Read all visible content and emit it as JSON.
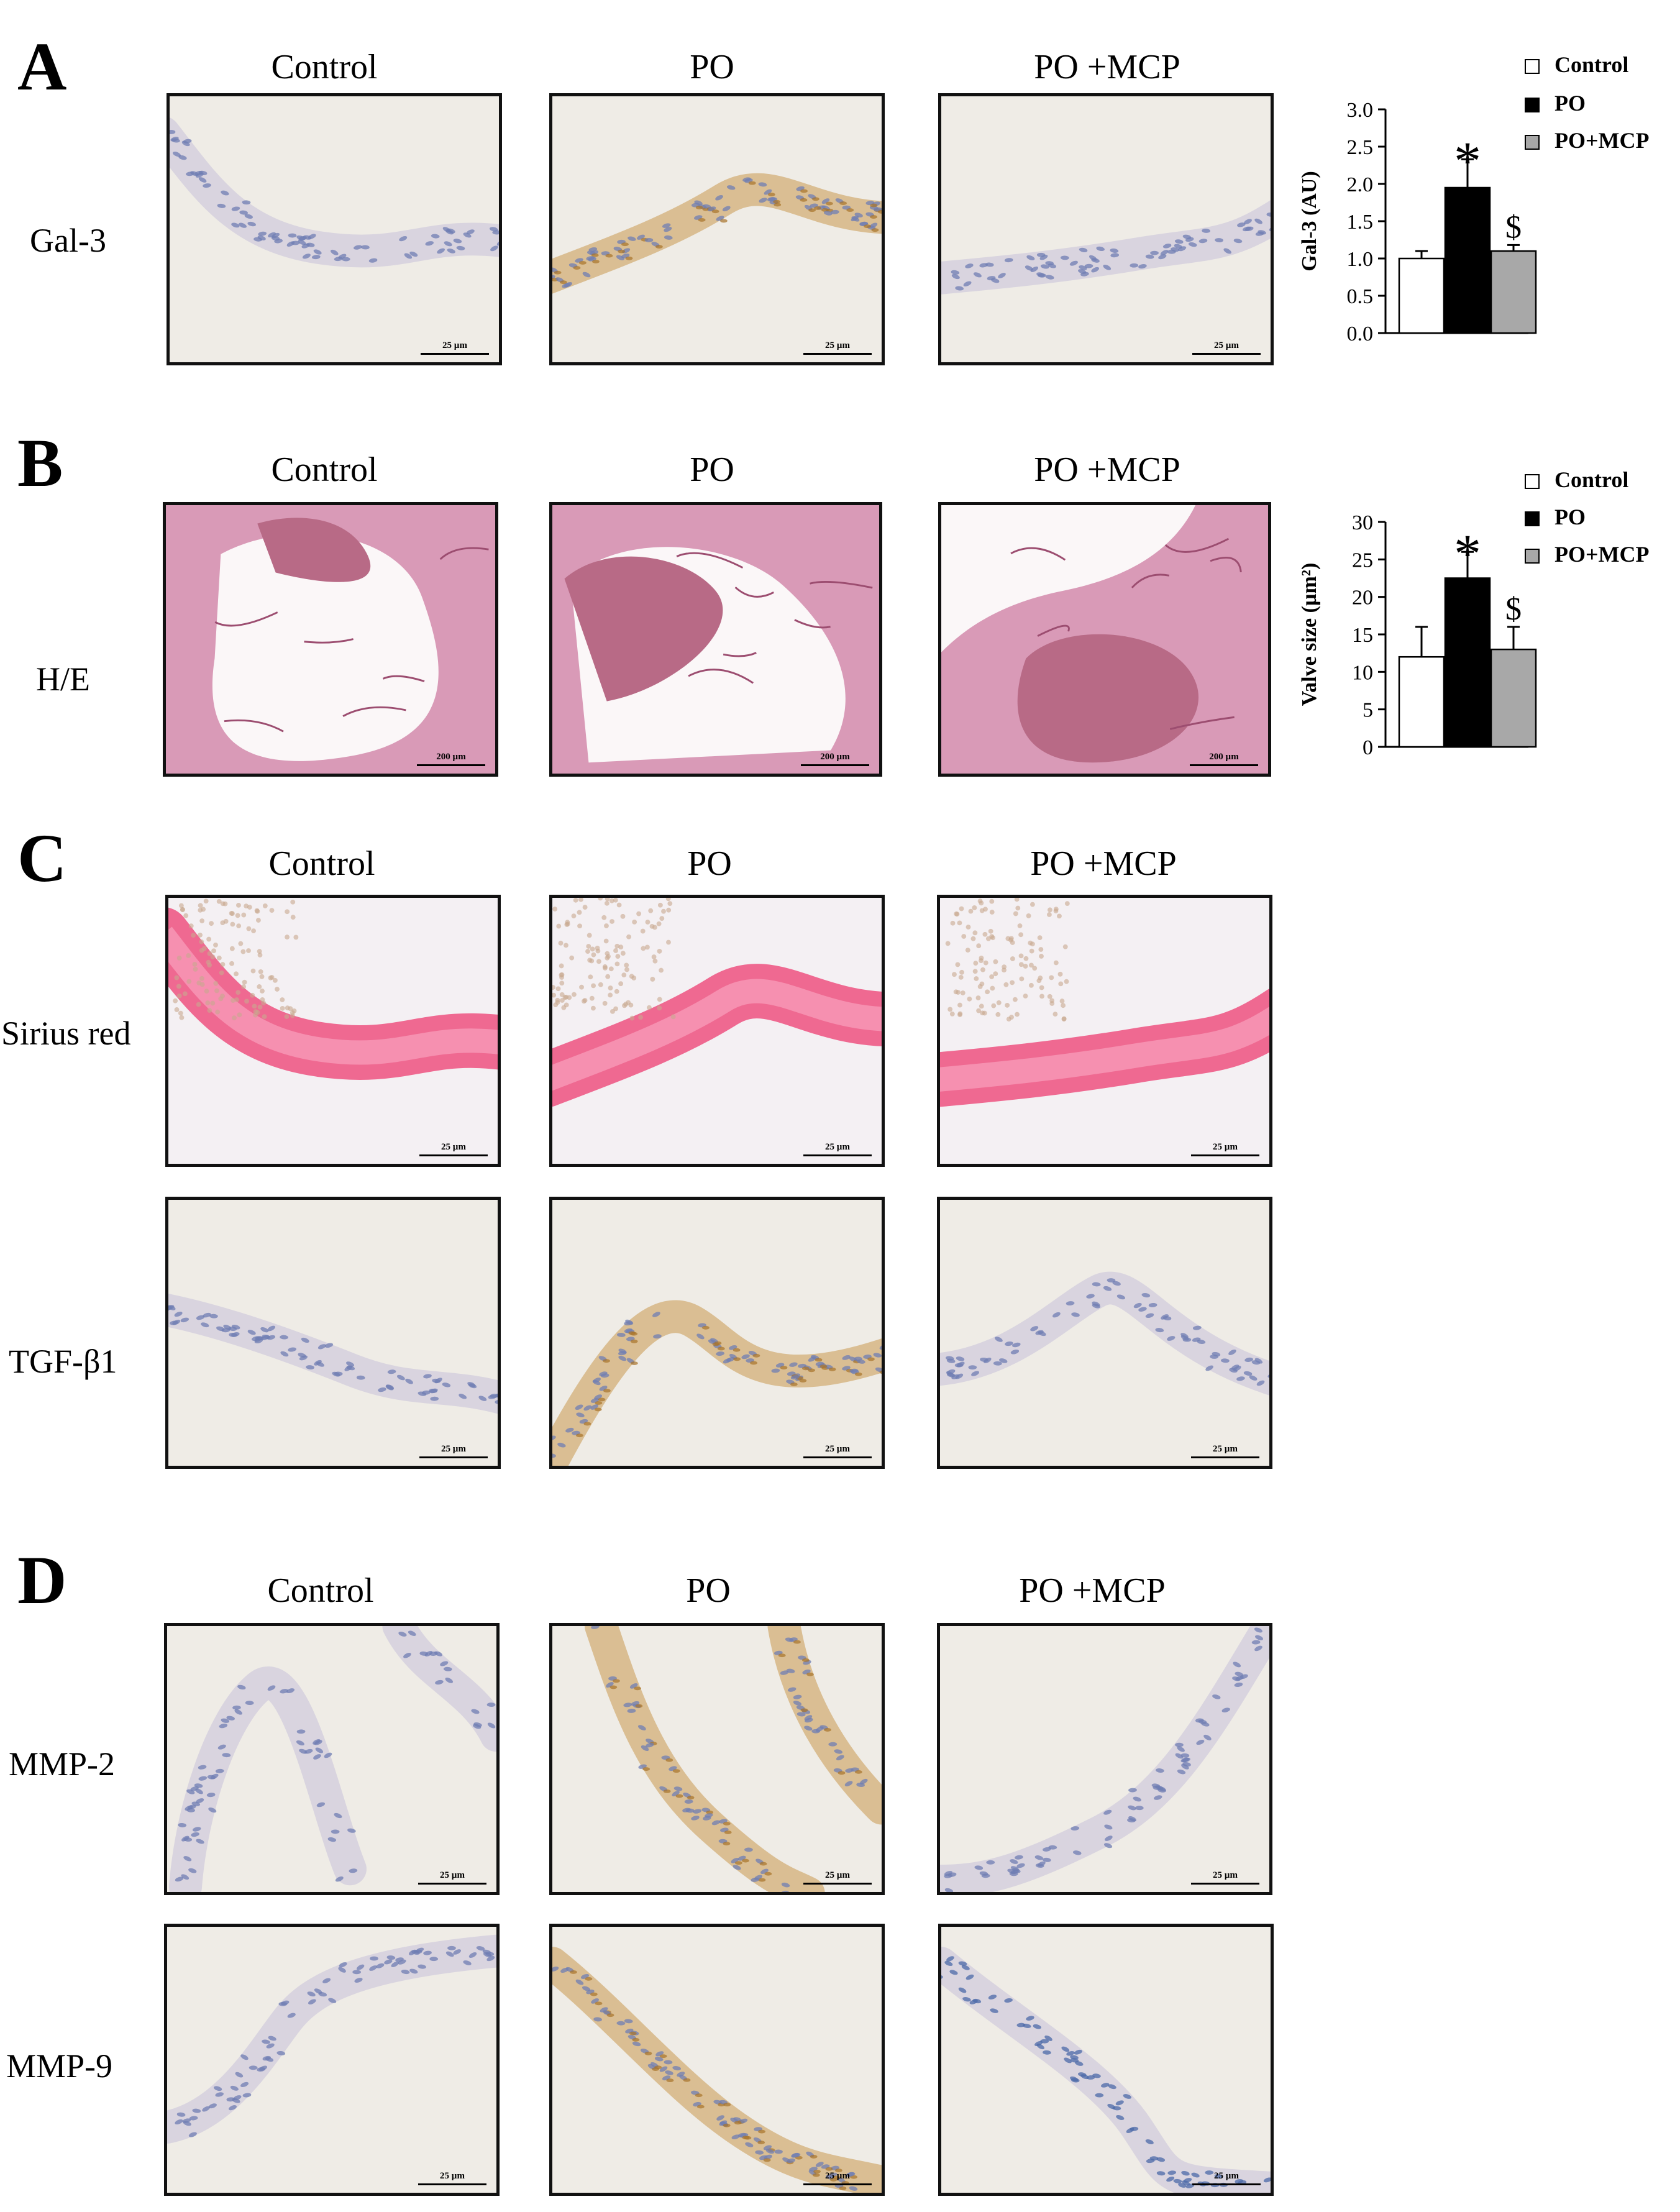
{
  "colors": {
    "control": "#ffffff",
    "po": "#000000",
    "po_mcp": "#a8a8a8",
    "stroke": "#000000"
  },
  "columns": [
    "Control",
    "PO",
    "PO +MCP"
  ],
  "panels": {
    "A": {
      "letter": "A",
      "rows": [
        {
          "label": "Gal-3",
          "stain": "ihc-light",
          "scale": "25 µm"
        }
      ]
    },
    "B": {
      "letter": "B",
      "rows": [
        {
          "label": "H/E",
          "stain": "he",
          "scale": "200 µm"
        }
      ]
    },
    "C": {
      "letter": "C",
      "rows": [
        {
          "label": "Sirius red",
          "stain": "sirius",
          "scale": "25 µm"
        },
        {
          "label": "TGF-β1",
          "stain": "ihc-light",
          "scale": "25 µm"
        }
      ]
    },
    "D": {
      "letter": "D",
      "rows": [
        {
          "label": "MMP-2",
          "stain": "ihc-light",
          "scale": "25 µm"
        },
        {
          "label": "MMP-9",
          "stain": "ihc-light",
          "scale": "25 µm"
        }
      ]
    }
  },
  "legend": [
    "Control",
    "PO",
    "PO+MCP"
  ],
  "chart_data": [
    {
      "type": "bar",
      "panel": "A",
      "categories": [
        "Control",
        "PO",
        "PO+MCP"
      ],
      "values": [
        1.0,
        1.95,
        1.1
      ],
      "errors": [
        0.1,
        0.38,
        0.08
      ],
      "annotations": [
        "",
        "*",
        "$"
      ],
      "ylabel": "Gal-3 (AU)",
      "ylim": [
        0,
        3.0
      ],
      "yticks": [
        "0.0",
        "0.5",
        "1.0",
        "1.5",
        "2.0",
        "2.5",
        "3.0"
      ]
    },
    {
      "type": "bar",
      "panel": "B",
      "categories": [
        "Control",
        "PO",
        "PO+MCP"
      ],
      "values": [
        12,
        22.5,
        13
      ],
      "errors": [
        4,
        3.5,
        3
      ],
      "annotations": [
        "",
        "*",
        "$"
      ],
      "ylabel": "Valve size (µm²)",
      "ylim": [
        0,
        30
      ],
      "yticks": [
        "0",
        "5",
        "10",
        "15",
        "20",
        "25",
        "30"
      ]
    }
  ]
}
